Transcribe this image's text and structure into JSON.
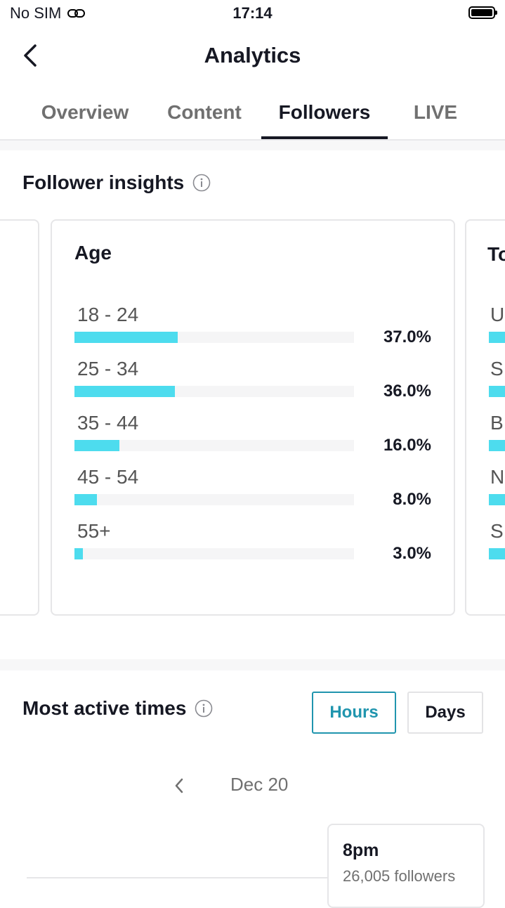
{
  "status_bar": {
    "carrier": "No SIM",
    "time": "17:14"
  },
  "nav": {
    "title": "Analytics"
  },
  "tabs": [
    {
      "label": "Overview",
      "active": false
    },
    {
      "label": "Content",
      "active": false
    },
    {
      "label": "Followers",
      "active": true
    },
    {
      "label": "LIVE",
      "active": false
    }
  ],
  "follower_insights": {
    "title": "Follower insights",
    "age_card": {
      "title": "Age",
      "rows": [
        {
          "label": "18 - 24",
          "percent": "37.0%",
          "value": 37.0
        },
        {
          "label": "25 - 34",
          "percent": "36.0%",
          "value": 36.0
        },
        {
          "label": "35 - 44",
          "percent": "16.0%",
          "value": 16.0
        },
        {
          "label": "45 - 54",
          "percent": "8.0%",
          "value": 8.0
        },
        {
          "label": "55+",
          "percent": "3.0%",
          "value": 3.0
        }
      ]
    },
    "next_card_peek": {
      "title": "To",
      "row_letters": [
        "U",
        "S",
        "B",
        "N",
        "S"
      ]
    }
  },
  "most_active": {
    "title": "Most active times",
    "toggle": {
      "hours": "Hours",
      "days": "Days",
      "selected": "Hours"
    },
    "date": "Dec 20",
    "tooltip": {
      "time": "8pm",
      "followers": "26,005 followers"
    }
  },
  "colors": {
    "bar": "#4ddcee",
    "accent": "#2095ae",
    "text": "#161823",
    "muted": "#707070"
  }
}
